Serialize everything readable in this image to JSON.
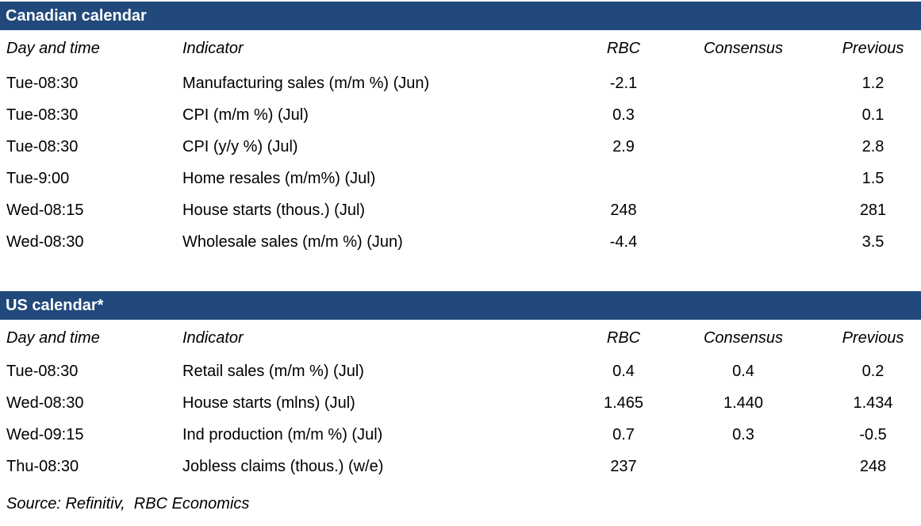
{
  "accent_color": "#21497B",
  "source_line": "Source: Refinitiv,  RBC Economics",
  "sections": [
    {
      "title": "Canadian calendar",
      "columns": [
        "Day and time",
        "Indicator",
        "RBC",
        "Consensus",
        "Previous"
      ],
      "rows": [
        {
          "day": "Tue-08:30",
          "indicator": "Manufacturing sales (m/m %) (Jun)",
          "rbc": "-2.1",
          "consensus": "",
          "previous": "1.2"
        },
        {
          "day": "Tue-08:30",
          "indicator": "CPI (m/m %) (Jul)",
          "rbc": "0.3",
          "consensus": "",
          "previous": "0.1"
        },
        {
          "day": "Tue-08:30",
          "indicator": "CPI (y/y %) (Jul)",
          "rbc": "2.9",
          "consensus": "",
          "previous": "2.8"
        },
        {
          "day": "Tue-9:00",
          "indicator": "Home resales (m/m%) (Jul)",
          "rbc": "",
          "consensus": "",
          "previous": "1.5"
        },
        {
          "day": "Wed-08:15",
          "indicator": "House starts (thous.) (Jul)",
          "rbc": "248",
          "consensus": "",
          "previous": "281"
        },
        {
          "day": "Wed-08:30",
          "indicator": "Wholesale sales (m/m %) (Jun)",
          "rbc": "-4.4",
          "consensus": "",
          "previous": "3.5"
        }
      ]
    },
    {
      "title": "US calendar*",
      "columns": [
        "Day and time",
        "Indicator",
        "RBC",
        "Consensus",
        "Previous"
      ],
      "rows": [
        {
          "day": "Tue-08:30",
          "indicator": "Retail sales (m/m %) (Jul)",
          "rbc": "0.4",
          "consensus": "0.4",
          "previous": "0.2"
        },
        {
          "day": "Wed-08:30",
          "indicator": "House starts (mlns) (Jul)",
          "rbc": "1.465",
          "consensus": "1.440",
          "previous": "1.434"
        },
        {
          "day": "Wed-09:15",
          "indicator": "Ind production (m/m %) (Jul)",
          "rbc": "0.7",
          "consensus": "0.3",
          "previous": "-0.5"
        },
        {
          "day": "Thu-08:30",
          "indicator": "Jobless claims (thous.) (w/e)",
          "rbc": "237",
          "consensus": "",
          "previous": "248"
        }
      ]
    }
  ]
}
